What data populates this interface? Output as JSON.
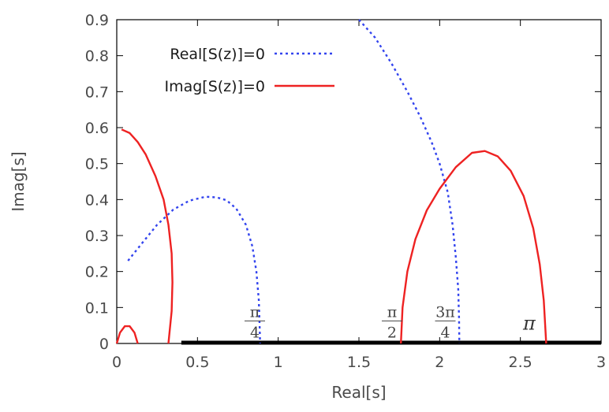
{
  "chart_data": {
    "type": "line",
    "xlabel": "Real[s]",
    "ylabel": "Imag[s]",
    "xlim": [
      0,
      3
    ],
    "ylim": [
      0,
      0.9
    ],
    "x_ticks": [
      "0",
      "0.5",
      "1",
      "1.5",
      "2",
      "2.5",
      "3"
    ],
    "y_ticks": [
      "0",
      "0.1",
      "0.2",
      "0.3",
      "0.4",
      "0.5",
      "0.6",
      "0.7",
      "0.8",
      "0.9"
    ],
    "grid": false,
    "legend_position": "top-left",
    "series": [
      {
        "name": "Real[S(z)]=0",
        "style": "dotted",
        "color": "#3344ee",
        "segments": [
          [
            [
              0.07,
              0.23
            ],
            [
              0.15,
              0.275
            ],
            [
              0.25,
              0.33
            ],
            [
              0.35,
              0.372
            ],
            [
              0.45,
              0.397
            ],
            [
              0.55,
              0.408
            ],
            [
              0.62,
              0.406
            ],
            [
              0.68,
              0.398
            ],
            [
              0.74,
              0.375
            ],
            [
              0.8,
              0.33
            ],
            [
              0.84,
              0.27
            ],
            [
              0.865,
              0.2
            ],
            [
              0.88,
              0.12
            ],
            [
              0.885,
              0.05
            ],
            [
              0.888,
              0.0
            ]
          ],
          [
            [
              1.5,
              0.9
            ],
            [
              1.6,
              0.85
            ],
            [
              1.7,
              0.78
            ],
            [
              1.8,
              0.7
            ],
            [
              1.88,
              0.63
            ],
            [
              1.95,
              0.56
            ],
            [
              2.0,
              0.5
            ],
            [
              2.05,
              0.42
            ],
            [
              2.08,
              0.33
            ],
            [
              2.1,
              0.24
            ],
            [
              2.115,
              0.15
            ],
            [
              2.12,
              0.07
            ],
            [
              2.122,
              0.0
            ]
          ]
        ]
      },
      {
        "name": "Imag[S(z)]=0",
        "style": "solid",
        "color": "#ee2222",
        "segments": [
          [
            [
              0.0,
              0.0
            ],
            [
              0.02,
              0.03
            ],
            [
              0.05,
              0.048
            ],
            [
              0.08,
              0.048
            ],
            [
              0.11,
              0.03
            ],
            [
              0.13,
              0.0
            ]
          ],
          [
            [
              0.03,
              0.595
            ],
            [
              0.08,
              0.585
            ],
            [
              0.13,
              0.56
            ],
            [
              0.18,
              0.525
            ],
            [
              0.24,
              0.465
            ],
            [
              0.29,
              0.4
            ],
            [
              0.32,
              0.33
            ],
            [
              0.34,
              0.25
            ],
            [
              0.345,
              0.17
            ],
            [
              0.34,
              0.09
            ],
            [
              0.32,
              0.0
            ]
          ],
          [
            [
              1.76,
              0.0
            ],
            [
              1.77,
              0.1
            ],
            [
              1.8,
              0.2
            ],
            [
              1.85,
              0.29
            ],
            [
              1.92,
              0.37
            ],
            [
              2.0,
              0.43
            ],
            [
              2.1,
              0.49
            ],
            [
              2.2,
              0.53
            ],
            [
              2.28,
              0.535
            ],
            [
              2.36,
              0.52
            ],
            [
              2.44,
              0.48
            ],
            [
              2.52,
              0.41
            ],
            [
              2.58,
              0.32
            ],
            [
              2.62,
              0.22
            ],
            [
              2.645,
              0.12
            ],
            [
              2.66,
              0.0
            ]
          ]
        ]
      }
    ],
    "baseline_segment": {
      "x": [
        0.4,
        3.0
      ],
      "y": 0,
      "color": "#000000"
    },
    "annotations": [
      {
        "num": "π",
        "den": "4",
        "x": 0.855,
        "y": 0.065
      },
      {
        "num": "π",
        "den": "2",
        "x": 1.705,
        "y": 0.065
      },
      {
        "num": "3π",
        "den": "4",
        "x": 2.035,
        "y": 0.065
      },
      {
        "num": "π",
        "den": "",
        "x": 2.555,
        "y": 0.065
      }
    ]
  }
}
